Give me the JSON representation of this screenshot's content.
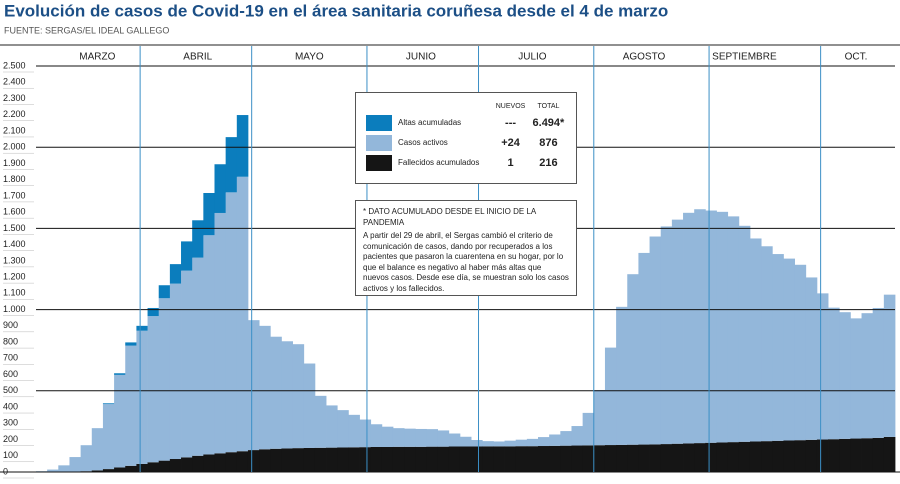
{
  "chart_data": {
    "type": "bar",
    "stacked": true,
    "title": "Evolución de casos de Covid-19 en el área sanitaria coruñesa desde el 4 de marzo",
    "source": "FUENTE: SERGAS/EL IDEAL GALLEGO",
    "categories": [
      null,
      null,
      null,
      null,
      null,
      "MARZO",
      null,
      null,
      null,
      null,
      null,
      null,
      null,
      null,
      "ABRIL",
      null,
      null,
      null,
      null,
      null,
      null,
      null,
      null,
      null,
      "MAYO",
      null,
      null,
      null,
      null,
      null,
      null,
      null,
      null,
      null,
      "JUNIO",
      null,
      null,
      null,
      null,
      null,
      null,
      null,
      null,
      null,
      "JULIO",
      null,
      null,
      null,
      null,
      null,
      null,
      null,
      null,
      null,
      "AGOSTO",
      null,
      null,
      null,
      null,
      null,
      null,
      null,
      null,
      "SEPTIEMBRE",
      null,
      null,
      null,
      null,
      null,
      null,
      null,
      null,
      null,
      "OCT.",
      null,
      null,
      null
    ],
    "series": [
      {
        "name": "Fallecidos acumulados",
        "color": "#151515",
        "values": [
          0,
          0,
          1,
          2,
          5,
          10,
          18,
          28,
          38,
          50,
          60,
          70,
          80,
          90,
          100,
          108,
          115,
          122,
          128,
          135,
          140,
          143,
          145,
          147,
          148,
          149,
          150,
          151,
          152,
          153,
          154,
          154,
          155,
          155,
          155,
          156,
          156,
          157,
          157,
          157,
          158,
          158,
          158,
          159,
          159,
          160,
          161,
          162,
          163,
          164,
          165,
          166,
          167,
          168,
          169,
          170,
          172,
          174,
          176,
          178,
          180,
          182,
          184,
          186,
          188,
          190,
          192,
          194,
          196,
          198,
          200,
          202,
          204,
          206,
          208,
          210,
          216
        ]
      },
      {
        "name": "Casos activos",
        "color": "#93b7da",
        "values": [
          5,
          15,
          40,
          90,
          160,
          260,
          400,
          570,
          740,
          820,
          900,
          1000,
          1080,
          1150,
          1220,
          1350,
          1480,
          1600,
          1690,
          800,
          760,
          690,
          660,
          640,
          520,
          320,
          260,
          230,
          200,
          170,
          140,
          125,
          115,
          112,
          110,
          108,
          100,
          80,
          60,
          40,
          32,
          30,
          35,
          40,
          45,
          55,
          70,
          90,
          120,
          200,
          340,
          600,
          850,
          1050,
          1180,
          1280,
          1340,
          1380,
          1420,
          1440,
          1430,
          1420,
          1390,
          1330,
          1250,
          1200,
          1150,
          1120,
          1080,
          1000,
          900,
          810,
          780,
          740,
          770,
          800,
          876
        ]
      },
      {
        "name": "Altas acumuladas",
        "color": "#0b7dbd",
        "values": [
          0,
          0,
          0,
          0,
          0,
          0,
          5,
          10,
          20,
          30,
          50,
          80,
          120,
          180,
          230,
          260,
          300,
          340,
          380,
          0,
          0,
          0,
          0,
          0,
          0,
          0,
          0,
          0,
          0,
          0,
          0,
          0,
          0,
          0,
          0,
          0,
          0,
          0,
          0,
          0,
          0,
          0,
          0,
          0,
          0,
          0,
          0,
          0,
          0,
          0,
          0,
          0,
          0,
          0,
          0,
          0,
          0,
          0,
          0,
          0,
          0,
          0,
          0,
          0,
          0,
          0,
          0,
          0,
          0,
          0,
          0,
          0,
          0,
          0,
          0,
          0,
          0
        ]
      }
    ],
    "ylim": [
      0,
      2500
    ],
    "yticks": [
      0,
      100,
      200,
      300,
      400,
      500,
      600,
      700,
      800,
      900,
      {
        "value": 1000,
        "label": "1.000"
      },
      {
        "value": 1100,
        "label": "1.100"
      },
      {
        "value": 1200,
        "label": "1.200"
      },
      {
        "value": 1300,
        "label": "1.300"
      },
      {
        "value": 1400,
        "label": "1.400"
      },
      {
        "value": 1500,
        "label": "1.500"
      },
      {
        "value": 1600,
        "label": "1.600"
      },
      {
        "value": 1700,
        "label": "1.700"
      },
      {
        "value": 1800,
        "label": "1.800"
      },
      {
        "value": 1900,
        "label": "1.900"
      },
      {
        "value": 2000,
        "label": "2.000"
      },
      {
        "value": 2100,
        "label": "2.100"
      },
      {
        "value": 2200,
        "label": "2.200"
      },
      {
        "value": 2300,
        "label": "2.300"
      },
      {
        "value": 2400,
        "label": "2.400"
      },
      {
        "value": 2500,
        "label": "2.500"
      }
    ],
    "major_grid": [
      500,
      1000,
      1500,
      2000,
      2500
    ],
    "legend_table": {
      "headers": [
        "NUEVOS",
        "TOTAL"
      ],
      "rows": [
        [
          "---",
          "6.494*"
        ],
        [
          "+24",
          "876"
        ],
        [
          "1",
          "216"
        ]
      ]
    },
    "note": {
      "heading": "* DATO ACUMULADO DESDE EL INICIO DE LA PANDEMIA",
      "text": "A partir del 29 de abril, el Sergas cambió el criterio de comunicación de casos, dando por recuperados a los pacientes que pasaron la cuarentena en su hogar, por lo que el balance es negativo al haber más altas que nuevos casos. Desde ese día, se muestran solo los casos activos y los fallecidos."
    }
  }
}
